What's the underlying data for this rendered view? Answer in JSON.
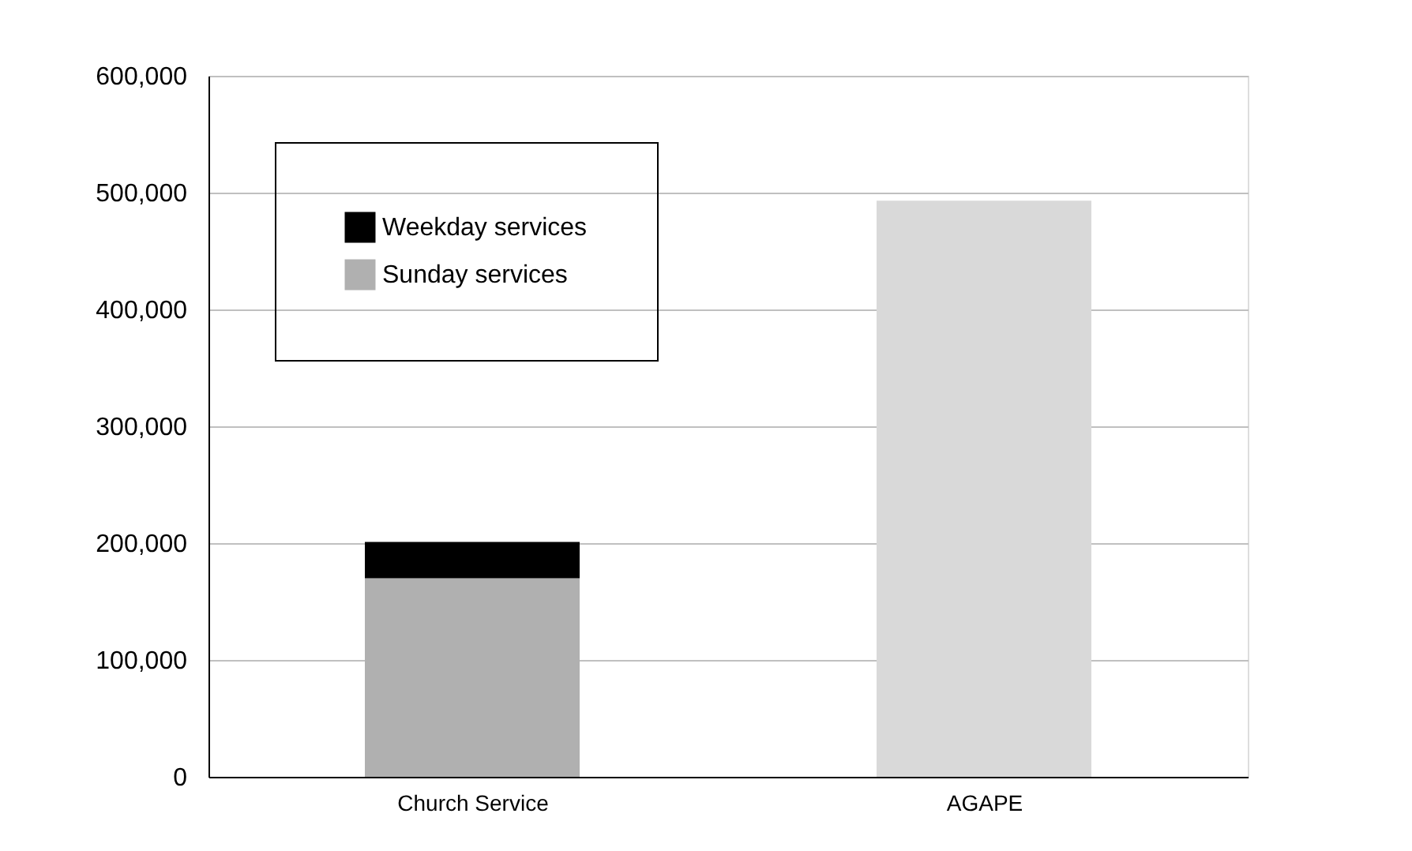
{
  "chart_data": {
    "type": "bar",
    "stacked": true,
    "categories": [
      "Church Service",
      "AGAPE"
    ],
    "series": [
      {
        "name": "Sunday services",
        "color": "#b0b0b0",
        "values": [
          170000,
          null
        ]
      },
      {
        "name": "Weekday services",
        "color": "#000000",
        "values": [
          31000,
          null
        ]
      },
      {
        "color": "#d9d9d9",
        "values": [
          null,
          493000
        ]
      }
    ],
    "ylim": [
      0,
      600000
    ],
    "yticks": [
      0,
      {
        "value": 100000,
        "label": "100,000"
      },
      {
        "value": 200000,
        "label": "200,000"
      },
      {
        "value": 300000,
        "label": "300,000"
      },
      {
        "value": 400000,
        "label": "400,000"
      },
      {
        "value": 500000,
        "label": "500,000"
      },
      {
        "value": 600000,
        "label": "600,000"
      }
    ],
    "grid": "y",
    "legend": "top left"
  }
}
